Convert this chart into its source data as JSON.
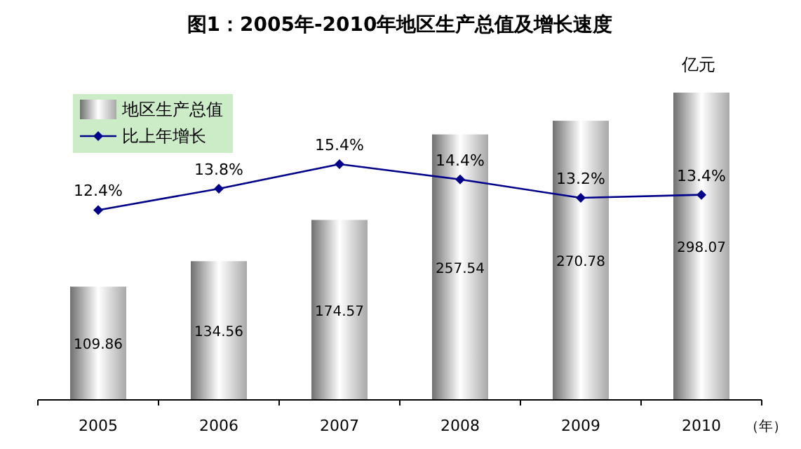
{
  "chart_data": {
    "type": "bar",
    "title": "图1：2005年-2010年地区生产总值及增长速度",
    "xlabel": "（年）",
    "ylabel": "亿元",
    "categories": [
      "2005",
      "2006",
      "2007",
      "2008",
      "2009",
      "2010"
    ],
    "legend": "top left",
    "series": [
      {
        "name": "地区生产总值",
        "color": "#a8a8a8",
        "values": [
          109.86,
          134.56,
          174.57,
          257.54,
          270.78,
          298.07
        ],
        "value_labels": [
          "109.86",
          "134.56",
          "174.57",
          "257.54",
          "270.78",
          "298.07"
        ]
      },
      {
        "name": "比上年增长",
        "type": "line",
        "axis": "y2",
        "color": "#00008b",
        "marker": "diamond",
        "values": [
          12.4,
          13.8,
          15.4,
          14.4,
          13.2,
          13.4
        ],
        "value_labels": [
          "12.4%",
          "13.8%",
          "15.4%",
          "14.4%",
          "13.2%",
          "13.4%"
        ]
      }
    ]
  }
}
